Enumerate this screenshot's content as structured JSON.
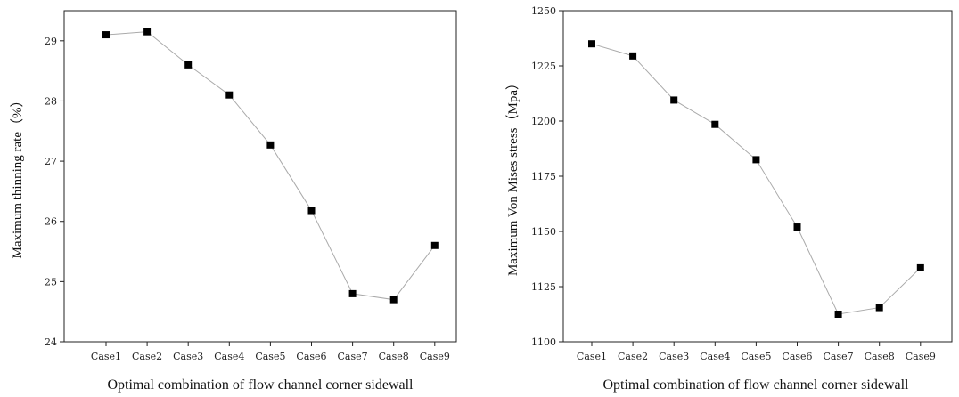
{
  "chart_data": [
    {
      "type": "line",
      "categories": [
        "Case1",
        "Case2",
        "Case3",
        "Case4",
        "Case5",
        "Case6",
        "Case7",
        "Case8",
        "Case9"
      ],
      "values": [
        29.1,
        29.15,
        28.6,
        28.1,
        27.27,
        26.18,
        24.8,
        24.7,
        25.6
      ],
      "xlabel": "Optimal combination of flow channel corner sidewall",
      "ylabel": "Maximum thinning rate（%）",
      "ylim": [
        24,
        29.5
      ],
      "yticks": [
        24,
        25,
        26,
        27,
        28,
        29
      ],
      "grid": false,
      "marker": "square",
      "line_color": "#aaaaaa",
      "marker_color": "#000000"
    },
    {
      "type": "line",
      "categories": [
        "Case1",
        "Case2",
        "Case3",
        "Case4",
        "Case5",
        "Case6",
        "Case7",
        "Case8",
        "Case9"
      ],
      "values": [
        1235,
        1229.5,
        1209.5,
        1198.5,
        1182.5,
        1152,
        1112.5,
        1115.5,
        1133.5
      ],
      "xlabel": "Optimal combination of flow channel corner sidewall",
      "ylabel": "Maximum Von Mises stress（Mpa）",
      "ylim": [
        1100,
        1250
      ],
      "yticks": [
        1100,
        1125,
        1150,
        1175,
        1200,
        1225,
        1250
      ],
      "grid": false,
      "marker": "square",
      "line_color": "#aaaaaa",
      "marker_color": "#000000"
    }
  ]
}
